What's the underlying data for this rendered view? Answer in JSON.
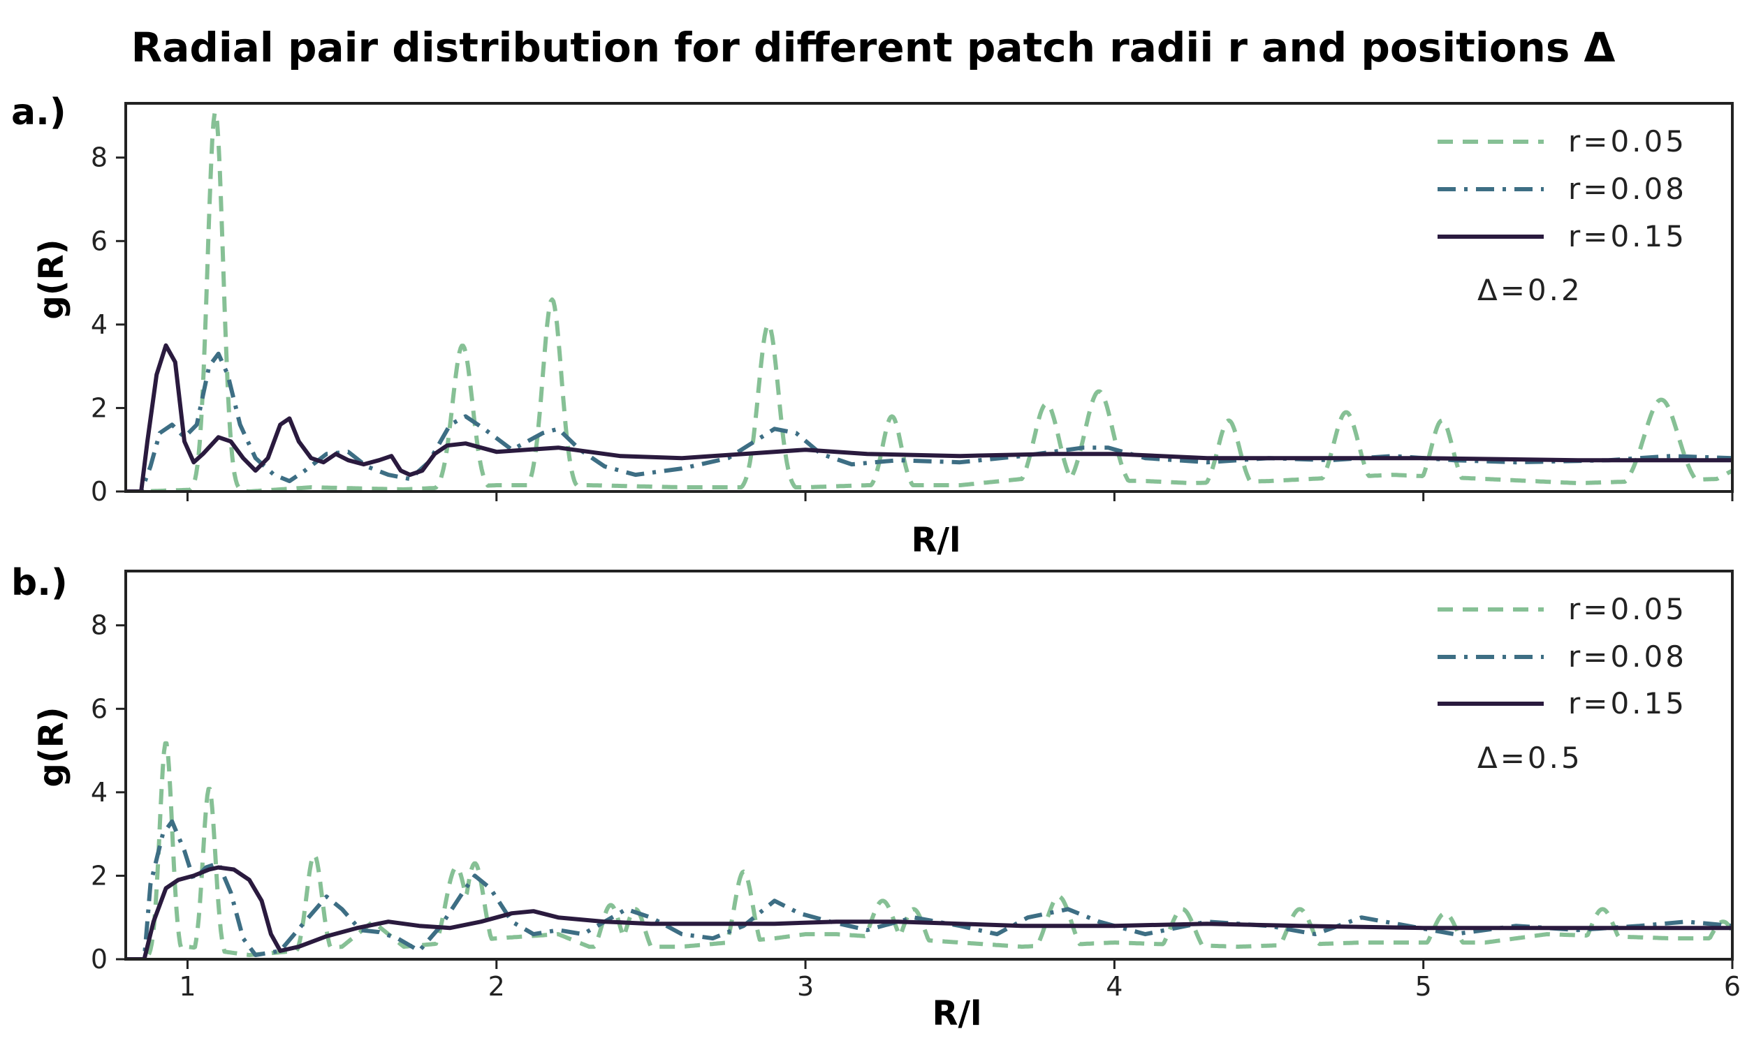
{
  "title": "Radial pair distribution for different patch radii r and positions Δ",
  "colors": {
    "r005": "#86c095",
    "r008": "#3d6e84",
    "r015": "#2a1a3e"
  },
  "chart_data": [
    {
      "type": "line",
      "panel_label": "a.)",
      "xlabel": "R/l",
      "ylabel": "g(R)",
      "xlim": [
        0.8,
        6.0
      ],
      "ylim": [
        0,
        9.3
      ],
      "xticks": [
        "1",
        "2",
        "3",
        "4",
        "5",
        "6"
      ],
      "xtick_labels_shown": false,
      "yticks": [
        "0",
        "2",
        "4",
        "6",
        "8"
      ],
      "annotation": "Δ=0.2",
      "legend_position": "top-right",
      "series": [
        {
          "name": "r=0.05",
          "style": "dashed",
          "peaks": [
            [
              1.09,
              9.1,
              0.025
            ],
            [
              1.89,
              3.5,
              0.032
            ],
            [
              2.18,
              4.6,
              0.03
            ],
            [
              2.88,
              4.0,
              0.032
            ],
            [
              3.28,
              1.8,
              0.03
            ],
            [
              3.78,
              2.1,
              0.04
            ],
            [
              3.95,
              2.4,
              0.045
            ],
            [
              4.37,
              1.7,
              0.035
            ],
            [
              4.75,
              1.9,
              0.04
            ],
            [
              5.06,
              1.7,
              0.035
            ],
            [
              5.77,
              2.2,
              0.055
            ]
          ],
          "baseline": [
            [
              0.8,
              0
            ],
            [
              0.85,
              0
            ],
            [
              1.05,
              0.05
            ],
            [
              1.2,
              0
            ],
            [
              1.4,
              0.1
            ],
            [
              1.7,
              0.05
            ],
            [
              2.0,
              0.15
            ],
            [
              2.3,
              0.15
            ],
            [
              2.6,
              0.1
            ],
            [
              3.0,
              0.1
            ],
            [
              3.2,
              0.15
            ],
            [
              3.5,
              0.15
            ],
            [
              3.7,
              0.3
            ],
            [
              4.1,
              0.25
            ],
            [
              4.25,
              0.2
            ],
            [
              4.5,
              0.25
            ],
            [
              4.9,
              0.4
            ],
            [
              5.2,
              0.3
            ],
            [
              5.5,
              0.2
            ],
            [
              5.95,
              0.3
            ],
            [
              6.0,
              0.5
            ]
          ]
        },
        {
          "name": "r=0.08",
          "style": "dashdot",
          "points": [
            [
              0.8,
              0
            ],
            [
              0.85,
              0
            ],
            [
              0.88,
              0.6
            ],
            [
              0.91,
              1.4
            ],
            [
              0.95,
              1.6
            ],
            [
              0.99,
              1.3
            ],
            [
              1.03,
              1.6
            ],
            [
              1.07,
              3.0
            ],
            [
              1.1,
              3.3
            ],
            [
              1.13,
              2.8
            ],
            [
              1.17,
              1.6
            ],
            [
              1.22,
              0.8
            ],
            [
              1.28,
              0.4
            ],
            [
              1.33,
              0.25
            ],
            [
              1.38,
              0.5
            ],
            [
              1.45,
              0.9
            ],
            [
              1.52,
              0.95
            ],
            [
              1.58,
              0.6
            ],
            [
              1.65,
              0.4
            ],
            [
              1.72,
              0.3
            ],
            [
              1.78,
              0.7
            ],
            [
              1.85,
              1.6
            ],
            [
              1.9,
              1.8
            ],
            [
              1.96,
              1.5
            ],
            [
              2.05,
              1.0
            ],
            [
              2.15,
              1.4
            ],
            [
              2.2,
              1.5
            ],
            [
              2.27,
              1.0
            ],
            [
              2.35,
              0.6
            ],
            [
              2.45,
              0.4
            ],
            [
              2.6,
              0.55
            ],
            [
              2.75,
              0.8
            ],
            [
              2.9,
              1.5
            ],
            [
              2.97,
              1.4
            ],
            [
              3.05,
              0.9
            ],
            [
              3.15,
              0.65
            ],
            [
              3.3,
              0.75
            ],
            [
              3.5,
              0.7
            ],
            [
              3.7,
              0.85
            ],
            [
              3.9,
              1.05
            ],
            [
              3.98,
              1.05
            ],
            [
              4.1,
              0.8
            ],
            [
              4.3,
              0.7
            ],
            [
              4.5,
              0.8
            ],
            [
              4.7,
              0.75
            ],
            [
              4.9,
              0.85
            ],
            [
              5.1,
              0.75
            ],
            [
              5.3,
              0.7
            ],
            [
              5.6,
              0.75
            ],
            [
              5.8,
              0.85
            ],
            [
              6.0,
              0.8
            ]
          ]
        },
        {
          "name": "r=0.15",
          "style": "solid",
          "points": [
            [
              0.8,
              0
            ],
            [
              0.85,
              0
            ],
            [
              0.87,
              1.2
            ],
            [
              0.9,
              2.8
            ],
            [
              0.93,
              3.5
            ],
            [
              0.96,
              3.1
            ],
            [
              0.99,
              1.2
            ],
            [
              1.02,
              0.7
            ],
            [
              1.05,
              0.9
            ],
            [
              1.1,
              1.3
            ],
            [
              1.14,
              1.2
            ],
            [
              1.18,
              0.8
            ],
            [
              1.22,
              0.5
            ],
            [
              1.26,
              0.8
            ],
            [
              1.3,
              1.6
            ],
            [
              1.33,
              1.75
            ],
            [
              1.36,
              1.2
            ],
            [
              1.4,
              0.8
            ],
            [
              1.44,
              0.7
            ],
            [
              1.48,
              0.9
            ],
            [
              1.52,
              0.75
            ],
            [
              1.57,
              0.65
            ],
            [
              1.62,
              0.75
            ],
            [
              1.66,
              0.85
            ],
            [
              1.69,
              0.5
            ],
            [
              1.72,
              0.4
            ],
            [
              1.76,
              0.5
            ],
            [
              1.8,
              0.9
            ],
            [
              1.84,
              1.1
            ],
            [
              1.9,
              1.15
            ],
            [
              2.0,
              0.95
            ],
            [
              2.2,
              1.05
            ],
            [
              2.4,
              0.85
            ],
            [
              2.6,
              0.8
            ],
            [
              2.8,
              0.9
            ],
            [
              3.0,
              1.0
            ],
            [
              3.2,
              0.9
            ],
            [
              3.5,
              0.85
            ],
            [
              3.8,
              0.9
            ],
            [
              4.0,
              0.9
            ],
            [
              4.3,
              0.8
            ],
            [
              4.6,
              0.8
            ],
            [
              5.0,
              0.8
            ],
            [
              5.5,
              0.75
            ],
            [
              6.0,
              0.75
            ]
          ]
        }
      ]
    },
    {
      "type": "line",
      "panel_label": "b.)",
      "xlabel": "R/l",
      "ylabel": "g(R)",
      "xlim": [
        0.8,
        6.0
      ],
      "ylim": [
        0,
        9.3
      ],
      "xticks": [
        "1",
        "2",
        "3",
        "4",
        "5",
        "6"
      ],
      "xtick_labels_shown": true,
      "yticks": [
        "0",
        "2",
        "4",
        "6",
        "8"
      ],
      "annotation": "Δ=0.5",
      "legend_position": "top-right",
      "series": [
        {
          "name": "r=0.05",
          "style": "dashed",
          "peaks": [
            [
              0.93,
              5.2,
              0.02
            ],
            [
              1.07,
              4.1,
              0.02
            ],
            [
              1.41,
              2.5,
              0.025
            ],
            [
              1.87,
              2.2,
              0.035
            ],
            [
              1.93,
              2.3,
              0.03
            ],
            [
              2.37,
              1.3,
              0.03
            ],
            [
              2.45,
              1.2,
              0.03
            ],
            [
              2.8,
              2.1,
              0.03
            ],
            [
              3.25,
              1.4,
              0.04
            ],
            [
              3.35,
              1.2,
              0.035
            ],
            [
              3.82,
              1.5,
              0.04
            ],
            [
              4.22,
              1.2,
              0.04
            ],
            [
              4.6,
              1.2,
              0.04
            ],
            [
              5.07,
              1.1,
              0.04
            ],
            [
              5.58,
              1.2,
              0.04
            ],
            [
              5.97,
              0.9,
              0.04
            ]
          ],
          "baseline": [
            [
              0.8,
              0
            ],
            [
              0.86,
              0
            ],
            [
              1.0,
              0.3
            ],
            [
              1.2,
              0.1
            ],
            [
              1.5,
              0.3
            ],
            [
              1.6,
              0.9
            ],
            [
              1.7,
              0.3
            ],
            [
              2.0,
              0.5
            ],
            [
              2.2,
              0.6
            ],
            [
              2.3,
              0.3
            ],
            [
              2.6,
              0.3
            ],
            [
              2.9,
              0.5
            ],
            [
              3.0,
              0.6
            ],
            [
              3.1,
              0.6
            ],
            [
              3.5,
              0.4
            ],
            [
              3.7,
              0.3
            ],
            [
              4.0,
              0.4
            ],
            [
              4.4,
              0.3
            ],
            [
              4.8,
              0.4
            ],
            [
              5.2,
              0.4
            ],
            [
              5.4,
              0.6
            ],
            [
              5.8,
              0.5
            ],
            [
              6.0,
              0.5
            ]
          ]
        },
        {
          "name": "r=0.08",
          "style": "dashdot",
          "points": [
            [
              0.8,
              0
            ],
            [
              0.86,
              0
            ],
            [
              0.88,
              1.8
            ],
            [
              0.92,
              3.0
            ],
            [
              0.95,
              3.3
            ],
            [
              0.99,
              2.6
            ],
            [
              1.02,
              1.9
            ],
            [
              1.06,
              2.2
            ],
            [
              1.1,
              2.3
            ],
            [
              1.14,
              1.6
            ],
            [
              1.18,
              0.5
            ],
            [
              1.22,
              0.1
            ],
            [
              1.3,
              0.2
            ],
            [
              1.38,
              0.9
            ],
            [
              1.45,
              1.5
            ],
            [
              1.5,
              1.2
            ],
            [
              1.56,
              0.7
            ],
            [
              1.62,
              0.65
            ],
            [
              1.68,
              0.5
            ],
            [
              1.75,
              0.2
            ],
            [
              1.82,
              0.8
            ],
            [
              1.9,
              1.7
            ],
            [
              1.93,
              2.0
            ],
            [
              1.98,
              1.7
            ],
            [
              2.05,
              0.9
            ],
            [
              2.12,
              0.6
            ],
            [
              2.2,
              0.7
            ],
            [
              2.28,
              0.6
            ],
            [
              2.35,
              0.9
            ],
            [
              2.42,
              1.2
            ],
            [
              2.5,
              1.0
            ],
            [
              2.6,
              0.6
            ],
            [
              2.7,
              0.5
            ],
            [
              2.8,
              0.8
            ],
            [
              2.9,
              1.4
            ],
            [
              2.98,
              1.1
            ],
            [
              3.08,
              0.9
            ],
            [
              3.2,
              0.7
            ],
            [
              3.35,
              1.0
            ],
            [
              3.5,
              0.8
            ],
            [
              3.62,
              0.6
            ],
            [
              3.72,
              1.0
            ],
            [
              3.85,
              1.2
            ],
            [
              3.95,
              0.9
            ],
            [
              4.1,
              0.6
            ],
            [
              4.3,
              0.9
            ],
            [
              4.5,
              0.8
            ],
            [
              4.65,
              0.6
            ],
            [
              4.8,
              1.0
            ],
            [
              4.95,
              0.8
            ],
            [
              5.1,
              0.6
            ],
            [
              5.3,
              0.8
            ],
            [
              5.5,
              0.7
            ],
            [
              5.7,
              0.8
            ],
            [
              5.85,
              0.9
            ],
            [
              6.0,
              0.8
            ]
          ]
        },
        {
          "name": "r=0.15",
          "style": "solid",
          "points": [
            [
              0.8,
              0
            ],
            [
              0.86,
              0
            ],
            [
              0.89,
              0.9
            ],
            [
              0.93,
              1.7
            ],
            [
              0.97,
              1.9
            ],
            [
              1.02,
              2.0
            ],
            [
              1.07,
              2.15
            ],
            [
              1.1,
              2.2
            ],
            [
              1.15,
              2.15
            ],
            [
              1.2,
              1.9
            ],
            [
              1.24,
              1.4
            ],
            [
              1.27,
              0.6
            ],
            [
              1.3,
              0.2
            ],
            [
              1.36,
              0.3
            ],
            [
              1.45,
              0.55
            ],
            [
              1.55,
              0.75
            ],
            [
              1.65,
              0.9
            ],
            [
              1.75,
              0.8
            ],
            [
              1.85,
              0.75
            ],
            [
              1.95,
              0.9
            ],
            [
              2.05,
              1.1
            ],
            [
              2.12,
              1.15
            ],
            [
              2.2,
              1.0
            ],
            [
              2.35,
              0.9
            ],
            [
              2.5,
              0.85
            ],
            [
              2.7,
              0.85
            ],
            [
              2.9,
              0.85
            ],
            [
              3.1,
              0.9
            ],
            [
              3.3,
              0.9
            ],
            [
              3.5,
              0.85
            ],
            [
              3.7,
              0.8
            ],
            [
              4.0,
              0.8
            ],
            [
              4.3,
              0.85
            ],
            [
              4.6,
              0.8
            ],
            [
              5.0,
              0.75
            ],
            [
              5.5,
              0.75
            ],
            [
              6.0,
              0.75
            ]
          ]
        }
      ]
    }
  ]
}
